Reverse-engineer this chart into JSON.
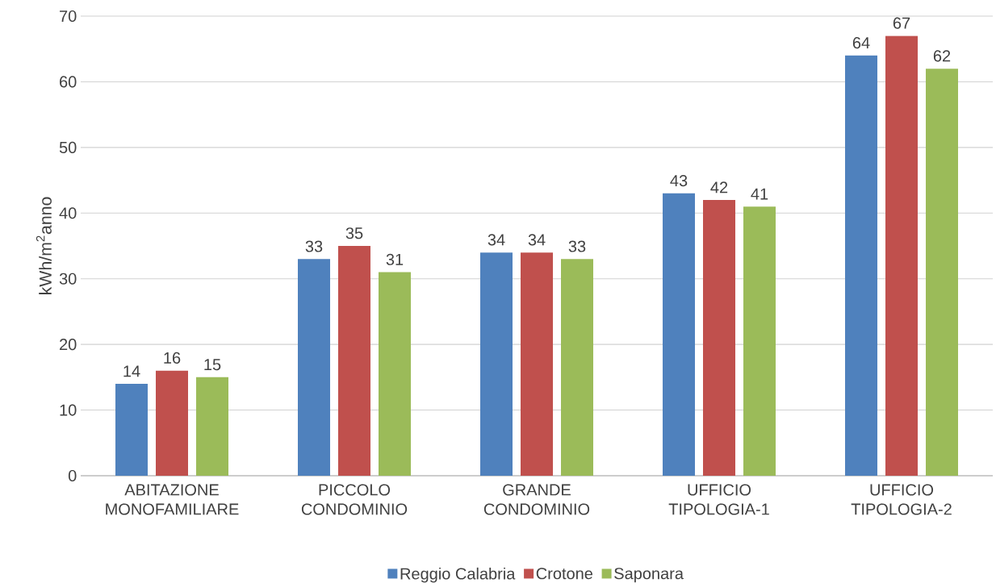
{
  "chart_data": {
    "type": "bar",
    "ylabel": "kWh/m$^{2}$anno",
    "categories": [
      "ABITAZIONE MONOFAMILIARE",
      "PICCOLO CONDOMINIO",
      "GRANDE CONDOMINIO",
      "UFFICIO TIPOLOGIA-1",
      "UFFICIO TIPOLOGIA-2"
    ],
    "series": [
      {
        "name": "Reggio Calabria",
        "color": "#4f81bd",
        "values": [
          14,
          33,
          34,
          43,
          64
        ]
      },
      {
        "name": "Crotone",
        "color": "#c0504d",
        "values": [
          16,
          35,
          34,
          42,
          67
        ]
      },
      {
        "name": "Saponara",
        "color": "#9bbb59",
        "values": [
          15,
          31,
          33,
          41,
          62
        ]
      }
    ],
    "ylim": [
      0,
      70
    ],
    "yticks": [
      0,
      10,
      20,
      30,
      40,
      50,
      60,
      70
    ],
    "grid": "y",
    "legend": "bottom",
    "data_labels": true
  }
}
